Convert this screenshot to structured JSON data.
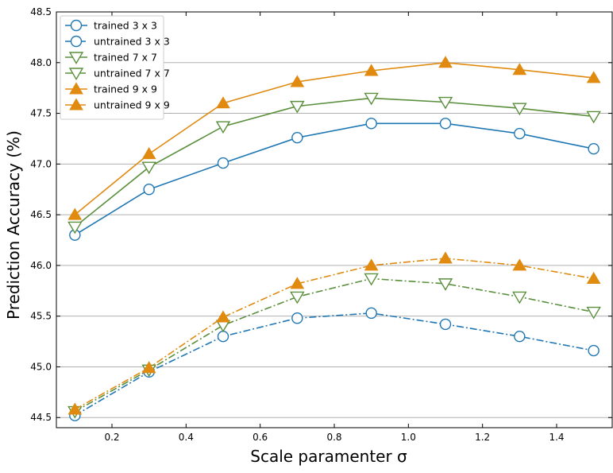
{
  "chart_data": {
    "type": "line",
    "title": "",
    "xlabel": "Scale paramenter σ",
    "ylabel": "Prediction Accuracy (%)",
    "xlim": [
      0.05,
      1.55
    ],
    "ylim": [
      44.4,
      48.5
    ],
    "xticks": [
      "0.2",
      "0.4",
      "0.6",
      "0.8",
      "1.0",
      "1.2",
      "1.4"
    ],
    "yticks": [
      "44.5",
      "45.0",
      "45.5",
      "46.0",
      "46.5",
      "47.0",
      "47.5",
      "48.0",
      "48.5"
    ],
    "grid": "horizontal",
    "legend_position": "top-left",
    "x": [
      0.1,
      0.3,
      0.5,
      0.7,
      0.9,
      1.1,
      1.3,
      1.5
    ],
    "series": [
      {
        "name": "trained 3 x 3",
        "color": "#1f77b4",
        "marker": "circle-open",
        "linestyle": "solid",
        "values": [
          46.3,
          46.75,
          47.01,
          47.26,
          47.4,
          47.4,
          47.3,
          47.15
        ]
      },
      {
        "name": "untrained 3 x 3",
        "color": "#1f77b4",
        "marker": "circle-open",
        "linestyle": "dashdot",
        "values": [
          44.52,
          44.95,
          45.3,
          45.48,
          45.53,
          45.42,
          45.3,
          45.16
        ]
      },
      {
        "name": "trained 7 x 7",
        "color": "#5a8f3c",
        "marker": "triangle-down-open",
        "linestyle": "solid",
        "values": [
          46.38,
          46.97,
          47.37,
          47.57,
          47.65,
          47.61,
          47.55,
          47.47
        ]
      },
      {
        "name": "untrained 7 x 7",
        "color": "#5a8f3c",
        "marker": "triangle-down-open",
        "linestyle": "dashdot",
        "values": [
          44.56,
          44.97,
          45.41,
          45.69,
          45.87,
          45.82,
          45.69,
          45.54
        ]
      },
      {
        "name": "trained 9 x 9",
        "color": "#e08a10",
        "marker": "triangle-up-filled",
        "linestyle": "solid",
        "values": [
          46.5,
          47.1,
          47.6,
          47.81,
          47.92,
          48.0,
          47.93,
          47.85
        ]
      },
      {
        "name": "untrained 9 x 9",
        "color": "#e08a10",
        "marker": "triangle-up-filled",
        "linestyle": "dashdot",
        "values": [
          44.58,
          44.99,
          45.49,
          45.82,
          46.0,
          46.07,
          46.0,
          45.87
        ]
      }
    ]
  }
}
